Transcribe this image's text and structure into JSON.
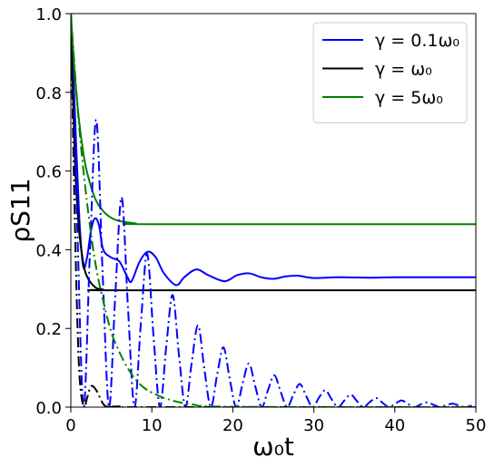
{
  "chart_data": {
    "type": "line",
    "xlabel": "ω₀t",
    "ylabel": "ρS11",
    "xlim": [
      0,
      50
    ],
    "ylim": [
      0,
      1
    ],
    "xticks": [
      0,
      10,
      20,
      30,
      40,
      50
    ],
    "yticks": [
      {
        "value": 0,
        "label": "0.0"
      },
      0.2,
      0.4,
      0.6,
      0.8,
      {
        "value": 1,
        "label": "1.0"
      }
    ],
    "legend": "upper right",
    "grid": false,
    "series": [
      {
        "name": "γ = 0.1ω₀",
        "color": "#0000ff",
        "linestyle": "solid",
        "x": [
          0,
          0.5,
          1,
          1.5,
          2,
          2.5,
          3,
          3.5,
          4,
          5,
          6,
          7,
          7.5,
          8.5,
          9.5,
          10.5,
          11.5,
          13,
          14,
          15.5,
          17,
          19,
          20.5,
          22,
          23.5,
          25,
          26.5,
          28,
          30,
          33,
          37,
          40,
          45,
          50
        ],
        "values": [
          1,
          0.75,
          0.5,
          0.36,
          0.38,
          0.45,
          0.48,
          0.46,
          0.4,
          0.38,
          0.37,
          0.33,
          0.32,
          0.37,
          0.395,
          0.38,
          0.34,
          0.31,
          0.33,
          0.35,
          0.335,
          0.32,
          0.335,
          0.34,
          0.33,
          0.326,
          0.332,
          0.334,
          0.328,
          0.33,
          0.329,
          0.33,
          0.33,
          0.33
        ]
      },
      {
        "name": "γ = ω₀",
        "color": "#000000",
        "linestyle": "solid",
        "x": [
          0,
          0.5,
          1,
          1.5,
          2,
          3,
          4,
          6,
          50
        ],
        "values": [
          1,
          0.629,
          0.454,
          0.371,
          0.332,
          0.305,
          0.299,
          0.297,
          0.297
        ]
      },
      {
        "name": "γ = 5ω₀",
        "color": "#008000",
        "linestyle": "solid",
        "x": [
          0,
          0.5,
          1,
          1.5,
          2,
          3,
          4,
          5,
          6,
          8,
          10,
          50
        ],
        "values": [
          1,
          0.842,
          0.731,
          0.652,
          0.597,
          0.53,
          0.498,
          0.481,
          0.473,
          0.467,
          0.465,
          0.465
        ]
      },
      {
        "color": "#0000ff",
        "linestyle": "dashdot",
        "x": [
          0,
          0.79,
          1.57,
          2.36,
          3.14,
          3.93,
          4.71,
          5.5,
          6.28,
          7.07,
          7.85,
          8.64,
          9.42,
          10.21,
          11,
          11.78,
          12.57,
          13.35,
          14.14,
          14.92,
          15.71,
          16.49,
          17.28,
          18.06,
          18.85,
          19.63,
          20.42,
          21.21,
          21.99,
          22.78,
          23.56,
          24.35,
          25.13,
          25.92,
          26.7,
          27.49,
          28.27,
          29.06,
          29.85,
          30.63,
          31.42,
          32.2,
          32.99,
          33.77,
          34.56,
          35.34,
          36.13,
          36.91,
          37.7,
          38.48,
          39.27,
          40.06,
          40.84,
          41.63,
          42.41,
          43.2,
          43.98,
          44.77,
          45.55,
          46.34,
          47.12,
          47.91,
          48.69,
          49.48
        ],
        "values": [
          1,
          0.462,
          0,
          0.395,
          0.73,
          0.338,
          0,
          0.289,
          0.533,
          0.247,
          0,
          0.211,
          0.39,
          0.18,
          0,
          0.154,
          0.285,
          0.132,
          0,
          0.113,
          0.208,
          0.096,
          0,
          0.082,
          0.152,
          0.07,
          0,
          0.06,
          0.111,
          0.052,
          0,
          0.044,
          0.081,
          0.038,
          0,
          0.032,
          0.059,
          0.028,
          0,
          0.024,
          0.043,
          0.02,
          0,
          0.017,
          0.032,
          0.015,
          0,
          0.013,
          0.023,
          0.011,
          0,
          0.009,
          0.017,
          0.008,
          0,
          0.007,
          0.012,
          0.006,
          0,
          0.005,
          0.009,
          0.004,
          0,
          0.004
        ]
      },
      {
        "color": "#000000",
        "linestyle": "dashdot",
        "x": [
          0,
          0.5,
          1,
          1.57,
          2,
          2.5,
          3.14,
          4,
          4.71,
          6,
          8,
          50
        ],
        "values": [
          1,
          0.47,
          0.107,
          0,
          0.023,
          0.053,
          0.043,
          0.008,
          0,
          0.002,
          0,
          0
        ]
      },
      {
        "color": "#008000",
        "linestyle": "dashdot",
        "x": [
          0,
          1,
          2,
          3,
          4,
          5,
          6,
          7,
          8,
          9,
          10,
          12,
          15,
          20,
          50
        ],
        "values": [
          1,
          0.72,
          0.52,
          0.37,
          0.27,
          0.19,
          0.14,
          0.1,
          0.07,
          0.05,
          0.037,
          0.02,
          0.007,
          0.001,
          0
        ]
      }
    ]
  }
}
